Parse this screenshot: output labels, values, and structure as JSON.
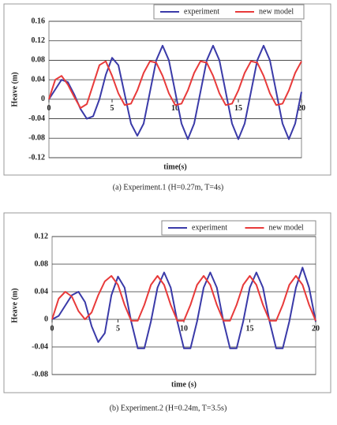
{
  "chart_data": [
    {
      "type": "line",
      "ylabel": "Heave (m)",
      "xlabel": "time(s)",
      "caption": "(a) Experiment.1    (H=0.27m, T=4s)",
      "xlim": [
        0,
        20
      ],
      "xticks": [
        0,
        5,
        10,
        15,
        20
      ],
      "ylim": [
        -0.12,
        0.16
      ],
      "yticks": [
        0.16,
        0.12,
        0.08,
        0.04,
        0,
        -0.04,
        -0.08,
        -0.12
      ],
      "grid": true,
      "x": [
        0,
        0.5,
        1,
        1.5,
        2,
        2.5,
        3,
        3.5,
        4,
        4.5,
        5,
        5.5,
        6,
        6.5,
        7,
        7.5,
        8,
        8.5,
        9,
        9.5,
        10,
        10.5,
        11,
        11.5,
        12,
        12.5,
        13,
        13.5,
        14,
        14.5,
        15,
        15.5,
        16,
        16.5,
        17,
        17.5,
        18,
        18.5,
        19,
        19.5,
        20
      ],
      "series": [
        {
          "name": "experiment",
          "color": "#3a3aa8",
          "values": [
            0,
            0.02,
            0.04,
            0.035,
            0.01,
            -0.02,
            -0.04,
            -0.035,
            0,
            0.05,
            0.085,
            0.07,
            0.01,
            -0.05,
            -0.075,
            -0.05,
            0.015,
            0.08,
            0.11,
            0.08,
            0.015,
            -0.05,
            -0.082,
            -0.05,
            0.015,
            0.08,
            0.11,
            0.08,
            0.015,
            -0.05,
            -0.082,
            -0.05,
            0.015,
            0.08,
            0.11,
            0.08,
            0.015,
            -0.05,
            -0.082,
            -0.05,
            0.015
          ]
        },
        {
          "name": "new model",
          "color": "#e83a3a",
          "values": [
            0,
            0.04,
            0.048,
            0.03,
            0.005,
            -0.018,
            -0.01,
            0.03,
            0.07,
            0.078,
            0.048,
            0.012,
            -0.012,
            -0.009,
            0.018,
            0.054,
            0.078,
            0.075,
            0.048,
            0.012,
            -0.012,
            -0.009,
            0.018,
            0.054,
            0.078,
            0.075,
            0.048,
            0.012,
            -0.012,
            -0.009,
            0.018,
            0.054,
            0.078,
            0.075,
            0.048,
            0.012,
            -0.012,
            -0.009,
            0.018,
            0.054,
            0.078
          ]
        }
      ]
    },
    {
      "type": "line",
      "ylabel": "Heave (m)",
      "xlabel": "time (s)",
      "caption": "(b)  Experiment.2 (H=0.24m, T=3.5s)",
      "xlim": [
        0,
        20
      ],
      "xticks": [
        0,
        5,
        10,
        15,
        20
      ],
      "ylim": [
        -0.08,
        0.12
      ],
      "yticks": [
        0.12,
        0.08,
        0.04,
        0,
        -0.04,
        -0.08
      ],
      "grid": true,
      "x": [
        0,
        0.5,
        1,
        1.5,
        2,
        2.5,
        3,
        3.5,
        4,
        4.5,
        5,
        5.5,
        6,
        6.5,
        7,
        7.5,
        8,
        8.5,
        9,
        9.5,
        10,
        10.5,
        11,
        11.5,
        12,
        12.5,
        13,
        13.5,
        14,
        14.5,
        15,
        15.5,
        16,
        16.5,
        17,
        17.5,
        18,
        18.5,
        19,
        19.5,
        20
      ],
      "series": [
        {
          "name": "experiment",
          "color": "#3a3aa8",
          "values": [
            0,
            0.005,
            0.02,
            0.035,
            0.04,
            0.025,
            -0.01,
            -0.033,
            -0.02,
            0.035,
            0.062,
            0.046,
            -0.003,
            -0.042,
            -0.042,
            -0.003,
            0.046,
            0.068,
            0.046,
            -0.003,
            -0.042,
            -0.042,
            -0.003,
            0.046,
            0.068,
            0.046,
            -0.003,
            -0.042,
            -0.042,
            -0.003,
            0.046,
            0.068,
            0.046,
            -0.003,
            -0.042,
            -0.042,
            -0.003,
            0.046,
            0.075,
            0.046,
            -0.003
          ]
        },
        {
          "name": "new model",
          "color": "#e83a3a",
          "values": [
            0,
            0.03,
            0.04,
            0.033,
            0.012,
            0,
            0.01,
            0.035,
            0.055,
            0.063,
            0.05,
            0.021,
            -0.002,
            -0.002,
            0.021,
            0.05,
            0.063,
            0.05,
            0.021,
            -0.002,
            -0.002,
            0.021,
            0.05,
            0.063,
            0.05,
            0.021,
            -0.002,
            -0.002,
            0.021,
            0.05,
            0.063,
            0.05,
            0.021,
            -0.002,
            -0.002,
            0.021,
            0.05,
            0.063,
            0.05,
            0.021,
            -0.002
          ]
        }
      ]
    }
  ]
}
